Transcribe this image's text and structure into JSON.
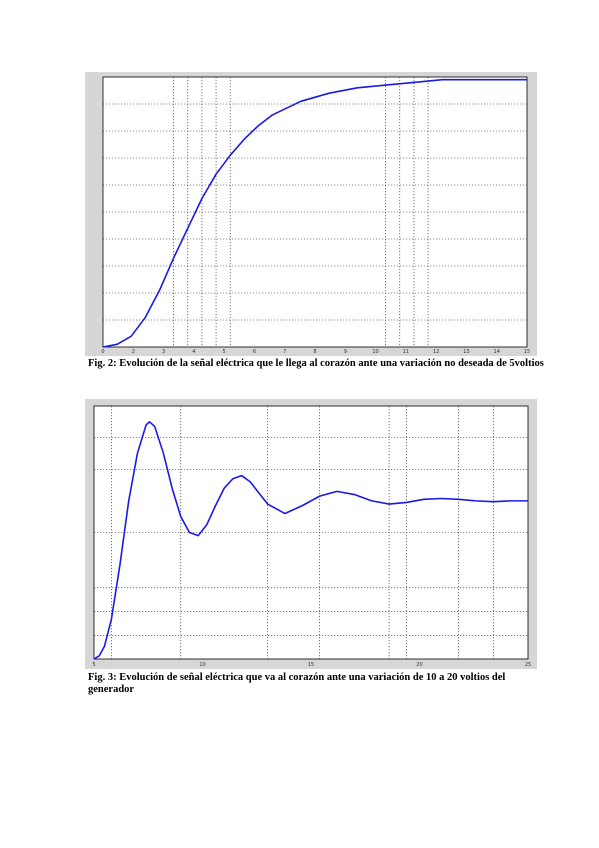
{
  "figures": [
    {
      "caption": "Fig. 2: Evolución de la señal eléctrica que le llega al corazón ante una variación no deseada de 5voltios"
    },
    {
      "caption": "Fig. 3: Evolución de señal eléctrica que va al corazón ante una variación de 10 a 20 voltios del generador"
    }
  ],
  "chart_data": [
    {
      "type": "line",
      "title": "",
      "xlabel": "",
      "ylabel": "",
      "xlim": [
        0,
        15
      ],
      "ylim": [
        0,
        1
      ],
      "grid": true,
      "x_gridlines": [
        2.5,
        3,
        3.5,
        4,
        4.5,
        10,
        10.5,
        11,
        11.5
      ],
      "y_gridlines": [
        0.1,
        0.2,
        0.3,
        0.4,
        0.5,
        0.6,
        0.7,
        0.8,
        0.9
      ],
      "x_tick_labels": [
        "0",
        "2",
        "3",
        "4",
        "5",
        "6",
        "7",
        "8",
        "9",
        "10",
        "11",
        "12",
        "13",
        "14",
        "15"
      ],
      "series": [
        {
          "color": "#1a1ae6",
          "x": [
            0,
            0.5,
            1,
            1.5,
            2,
            2.5,
            3,
            3.5,
            4,
            4.5,
            5,
            5.5,
            6,
            7,
            8,
            9,
            10,
            11,
            12,
            13,
            14,
            15
          ],
          "y": [
            0.0,
            0.01,
            0.04,
            0.11,
            0.21,
            0.33,
            0.44,
            0.55,
            0.64,
            0.71,
            0.77,
            0.82,
            0.86,
            0.91,
            0.94,
            0.96,
            0.97,
            0.98,
            0.99,
            0.99,
            0.99,
            0.99
          ]
        }
      ]
    },
    {
      "type": "line",
      "title": "",
      "xlabel": "",
      "ylabel": "",
      "xlim": [
        0,
        25
      ],
      "ylim": [
        0,
        1.6
      ],
      "grid": true,
      "x_gridlines": [
        1,
        5,
        10,
        13,
        17,
        18,
        21,
        23
      ],
      "y_gridlines": [
        0.15,
        0.3,
        0.45,
        0.8,
        1.2,
        1.4
      ],
      "x_tick_labels": [
        "5",
        "10",
        "15",
        "20",
        "25"
      ],
      "series": [
        {
          "color": "#1a1ae6",
          "x": [
            0,
            0.3,
            0.6,
            1,
            1.5,
            2,
            2.5,
            3,
            3.2,
            3.5,
            4,
            4.5,
            5,
            5.5,
            6,
            6.5,
            7,
            7.5,
            8,
            8.5,
            9,
            9.5,
            10,
            11,
            12,
            13,
            14,
            15,
            16,
            17,
            18,
            19,
            20,
            21,
            22,
            23,
            24,
            25
          ],
          "y": [
            0.0,
            0.02,
            0.08,
            0.25,
            0.6,
            1.0,
            1.3,
            1.48,
            1.5,
            1.47,
            1.3,
            1.08,
            0.9,
            0.8,
            0.78,
            0.85,
            0.97,
            1.08,
            1.14,
            1.16,
            1.12,
            1.05,
            0.98,
            0.92,
            0.97,
            1.03,
            1.06,
            1.04,
            1.0,
            0.98,
            0.99,
            1.01,
            1.015,
            1.01,
            1.0,
            0.995,
            1.0,
            1.0
          ]
        }
      ]
    }
  ]
}
